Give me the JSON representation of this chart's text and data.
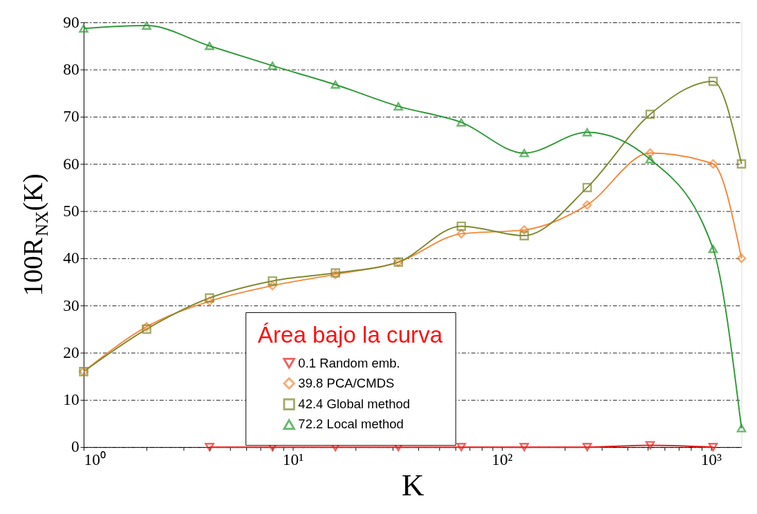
{
  "chart_data": {
    "type": "line",
    "xlabel": "K",
    "ylabel": "100R$_{NX}$(K)",
    "legend_title": "Área bajo la curva",
    "log": "x",
    "grid": "y",
    "legend": "bottom",
    "line_style": "solid",
    "xlim": [
      1,
      1400
    ],
    "xticks": [
      {
        "value": 1,
        "label": "10⁰"
      },
      {
        "value": 2,
        "label": null
      },
      {
        "value": 3,
        "label": null
      },
      {
        "value": 4,
        "label": null
      },
      {
        "value": 5,
        "label": null
      },
      {
        "value": 6,
        "label": null
      },
      {
        "value": 7,
        "label": null
      },
      {
        "value": 8,
        "label": null
      },
      {
        "value": 9,
        "label": null
      },
      {
        "value": 10,
        "label": "10¹"
      },
      {
        "value": 20,
        "label": null
      },
      {
        "value": 30,
        "label": null
      },
      {
        "value": 40,
        "label": null
      },
      {
        "value": 50,
        "label": null
      },
      {
        "value": 60,
        "label": null
      },
      {
        "value": 70,
        "label": null
      },
      {
        "value": 80,
        "label": null
      },
      {
        "value": 90,
        "label": null
      },
      {
        "value": 100,
        "label": "10²"
      },
      {
        "value": 200,
        "label": null
      },
      {
        "value": 300,
        "label": null
      },
      {
        "value": 400,
        "label": null
      },
      {
        "value": 500,
        "label": null
      },
      {
        "value": 600,
        "label": null
      },
      {
        "value": 700,
        "label": null
      },
      {
        "value": 800,
        "label": null
      },
      {
        "value": 900,
        "label": null
      },
      {
        "value": 1000,
        "label": "10³"
      }
    ],
    "ylim": [
      0,
      90
    ],
    "yticks": [
      0,
      10,
      20,
      30,
      40,
      50,
      60,
      70,
      80,
      90
    ],
    "series": [
      {
        "name": "0.1   Random emb.",
        "color": "#e8201c",
        "marker": "triangle-down",
        "x": [
          4,
          8,
          16,
          32,
          64,
          128,
          256,
          512,
          1024
        ],
        "values": [
          0,
          0,
          0,
          0,
          0,
          0,
          0,
          0.4,
          0
        ]
      },
      {
        "name": "39.8   PCA/CMDS",
        "color": "#f5883a",
        "marker": "diamond",
        "x": [
          1,
          2,
          4,
          8,
          16,
          32,
          64,
          128,
          256,
          512,
          1024,
          1400
        ],
        "values": [
          16,
          25.5,
          30.9,
          34.2,
          36.6,
          39.2,
          45.2,
          46,
          51.3,
          62.3,
          60,
          40
        ]
      },
      {
        "name": "42.4   Global method",
        "color": "#808a30",
        "marker": "square",
        "x": [
          1,
          2,
          4,
          8,
          16,
          32,
          64,
          128,
          256,
          512,
          1024,
          1400
        ],
        "values": [
          16,
          25,
          31.6,
          35.2,
          36.9,
          39.2,
          46.8,
          44.8,
          55,
          70.5,
          77.5,
          60
        ]
      },
      {
        "name": "72.2   Local method",
        "color": "#2e9a36",
        "marker": "triangle",
        "x": [
          1,
          2,
          4,
          8,
          16,
          32,
          64,
          128,
          256,
          512,
          1024,
          1400
        ],
        "values": [
          88.7,
          89.3,
          85,
          80.8,
          76.8,
          72.2,
          68.8,
          62.3,
          66.7,
          61,
          42,
          4
        ]
      }
    ]
  }
}
